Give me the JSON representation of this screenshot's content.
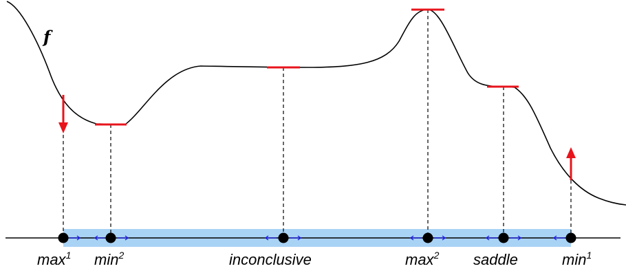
{
  "function_label": "f",
  "colors": {
    "curve": "#000000",
    "tangent": "#e8141c",
    "gradient_arrow": "#e8141c",
    "interval_band": "#a9d3f5",
    "small_arrows": "#1a1ae6",
    "dashed": "#000000",
    "axis": "#000000"
  },
  "points": [
    {
      "id": "max1",
      "label": "max",
      "sup": "1"
    },
    {
      "id": "min2",
      "label": "min",
      "sup": "2"
    },
    {
      "id": "inconclusive",
      "label": "inconclusive",
      "sup": ""
    },
    {
      "id": "max2",
      "label": "max",
      "sup": "2"
    },
    {
      "id": "saddle",
      "label": "saddle",
      "sup": ""
    },
    {
      "id": "min1",
      "label": "min",
      "sup": "1"
    }
  ]
}
